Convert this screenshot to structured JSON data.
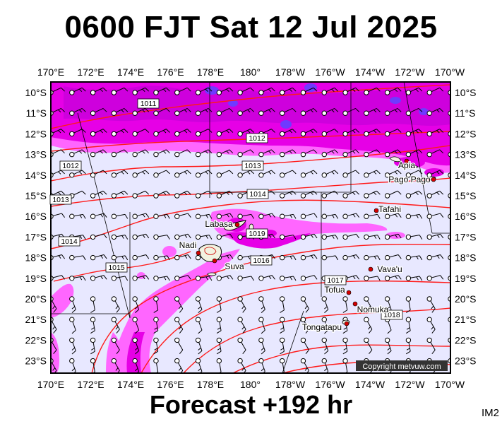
{
  "title": "0600 FJT Sat 12 Jul 2025",
  "footer": "Forecast +192 hr",
  "image_code": "IM2",
  "copyright": "Copyright metvuw.com",
  "lon_labels": [
    "170°E",
    "172°E",
    "174°E",
    "176°E",
    "178°E",
    "180°",
    "178°W",
    "176°W",
    "174°W",
    "172°W",
    "170°W"
  ],
  "lat_labels": [
    "10°S",
    "11°S",
    "12°S",
    "13°S",
    "14°S",
    "15°S",
    "16°S",
    "17°S",
    "18°S",
    "19°S",
    "20°S",
    "21°S",
    "22°S",
    "23°S"
  ],
  "isobar_labels": [
    "1011",
    "1012",
    "1012",
    "1013",
    "1013",
    "1014",
    "1014",
    "1015",
    "1016",
    "1017",
    "1018",
    "1019"
  ],
  "places": [
    "Apia",
    "Pago Pago",
    "Tafahi",
    "Labasa",
    "Nadi",
    "Suva",
    "Vava'u",
    "Tofua",
    "Nomuka",
    "Tongatapu"
  ],
  "colors": {
    "sea_background": "#e8e8ff",
    "rain_light": "#ff66ff",
    "rain_medium": "#e600e6",
    "rain_heavy": "#b000d0",
    "rain_intense": "#6f3aff",
    "isobar": "#ff1a1a",
    "land": "#f2f2e0",
    "place_dot": "#d40000",
    "frame": "#000000"
  }
}
